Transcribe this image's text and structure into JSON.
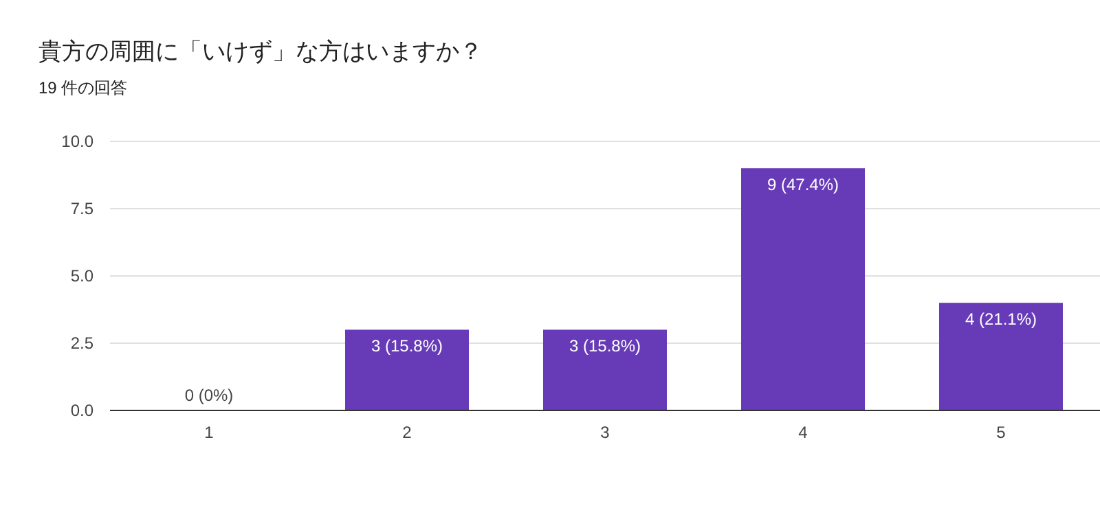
{
  "chart_data": {
    "type": "bar",
    "title": "貴方の周囲に「いけず」な方はいますか？",
    "subtitle": "19 件の回答",
    "categories": [
      "1",
      "2",
      "3",
      "4",
      "5"
    ],
    "values": [
      0,
      3,
      3,
      9,
      4
    ],
    "value_labels": [
      "0 (0%)",
      "3 (15.8%)",
      "3 (15.8%)",
      "9 (47.4%)",
      "4 (21.1%)"
    ],
    "color": "#673ab7",
    "ylim": [
      0,
      10
    ],
    "yticks": [
      {
        "value": 0,
        "label": "0.0"
      },
      {
        "value": 2.5,
        "label": "2.5"
      },
      {
        "value": 5,
        "label": "5.0"
      },
      {
        "value": 7.5,
        "label": "7.5"
      },
      {
        "value": 10,
        "label": "10.0"
      }
    ],
    "grid": "y"
  }
}
